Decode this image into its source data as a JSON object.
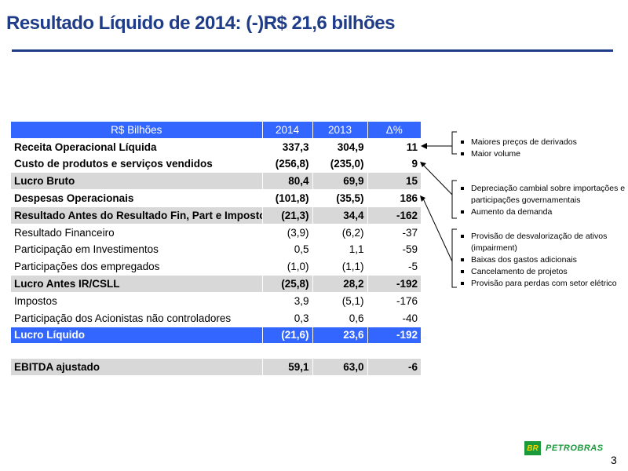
{
  "title": "Resultado Líquido de 2014: (-)R$ 21,6 bilhões",
  "table": {
    "headers": [
      "R$ Bilhões",
      "2014",
      "2013",
      "Δ%"
    ],
    "rows": [
      {
        "label": "Receita Operacional Líquida",
        "y2014": "337,3",
        "y2013": "304,9",
        "delta": "11",
        "style": "bold white"
      },
      {
        "label": "Custo de produtos e serviços vendidos",
        "y2014": "(256,8)",
        "y2013": "(235,0)",
        "delta": "9",
        "style": "bold white"
      },
      {
        "label": "Lucro Bruto",
        "y2014": "80,4",
        "y2013": "69,9",
        "delta": "15",
        "style": "bold gray"
      },
      {
        "label": "Despesas Operacionais",
        "y2014": "(101,8)",
        "y2013": "(35,5)",
        "delta": "186",
        "style": "bold white"
      },
      {
        "label": "Resultado Antes do Resultado Fin, Part e Impostos",
        "y2014": "(21,3)",
        "y2013": "34,4",
        "delta": "-162",
        "style": "bold gray"
      },
      {
        "label": "Resultado Financeiro",
        "y2014": "(3,9)",
        "y2013": "(6,2)",
        "delta": "-37",
        "style": "white"
      },
      {
        "label": "Participação em Investimentos",
        "y2014": "0,5",
        "y2013": "1,1",
        "delta": "-59",
        "style": "white"
      },
      {
        "label": "Participações dos empregados",
        "y2014": "(1,0)",
        "y2013": "(1,1)",
        "delta": "-5",
        "style": "white"
      },
      {
        "label": "Lucro Antes IR/CSLL",
        "y2014": "(25,8)",
        "y2013": "28,2",
        "delta": "-192",
        "style": "bold gray"
      },
      {
        "label": "Impostos",
        "y2014": "3,9",
        "y2013": "(5,1)",
        "delta": "-176",
        "style": "white"
      },
      {
        "label": "Participação dos Acionistas não controladores",
        "y2014": "0,3",
        "y2013": "0,6",
        "delta": "-40",
        "style": "white"
      },
      {
        "label": "Lucro Líquido",
        "y2014": "(21,6)",
        "y2013": "23,6",
        "delta": "-192",
        "style": "bold blue"
      }
    ],
    "ebitda": {
      "label": "EBITDA ajustado",
      "y2014": "59,1",
      "y2013": "63,0",
      "delta": "-6"
    }
  },
  "notes": {
    "revenue": [
      "Maiores preços de derivados",
      "Maior volume"
    ],
    "cost_line1": "Depreciação cambial sobre importações e",
    "cost_line2": "participações governamentais",
    "cost": [
      "Aumento da demanda"
    ],
    "opex_line1": "Provisão de desvalorização de ativos",
    "opex_line2": "(impairment)",
    "opex": [
      "Baixas dos gastos adicionais",
      "Cancelamento de projetos",
      "Provisão para perdas com setor elétrico"
    ]
  },
  "footer": {
    "logo_mark": "BR",
    "logo_text": "PETROBRAS",
    "page_number": "3"
  },
  "colors": {
    "title": "#1f3c88",
    "header": "#3366ff",
    "gray_row": "#d8d8d8",
    "logo_green": "#1a9a3a",
    "logo_yellow": "#f5d400"
  }
}
